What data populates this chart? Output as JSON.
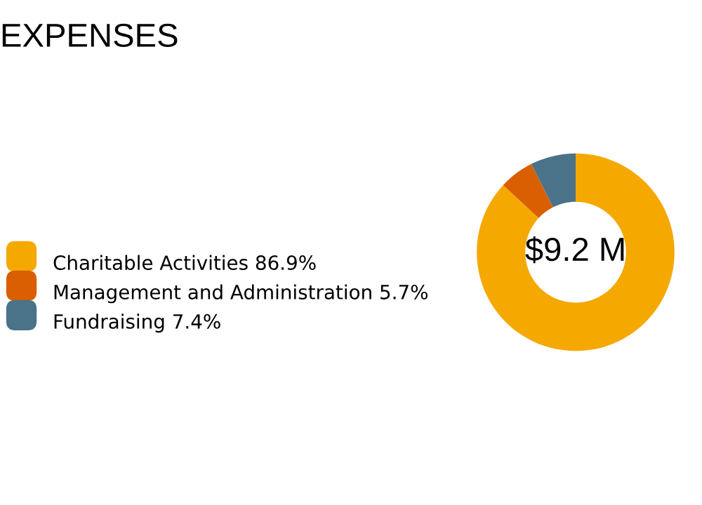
{
  "chart_data": {
    "type": "donut",
    "title": "EXPENSES",
    "categories": [
      "Charitable Activities 86.9%",
      "Management and Administration 5.7%",
      "Fundraising 7.4%"
    ],
    "values": [
      86.9,
      5.7,
      7.4
    ],
    "colors": [
      "#f5a800",
      "#d95f02",
      "#4a7289"
    ],
    "annotations": [
      "$9.2 M"
    ],
    "legend": "left"
  }
}
